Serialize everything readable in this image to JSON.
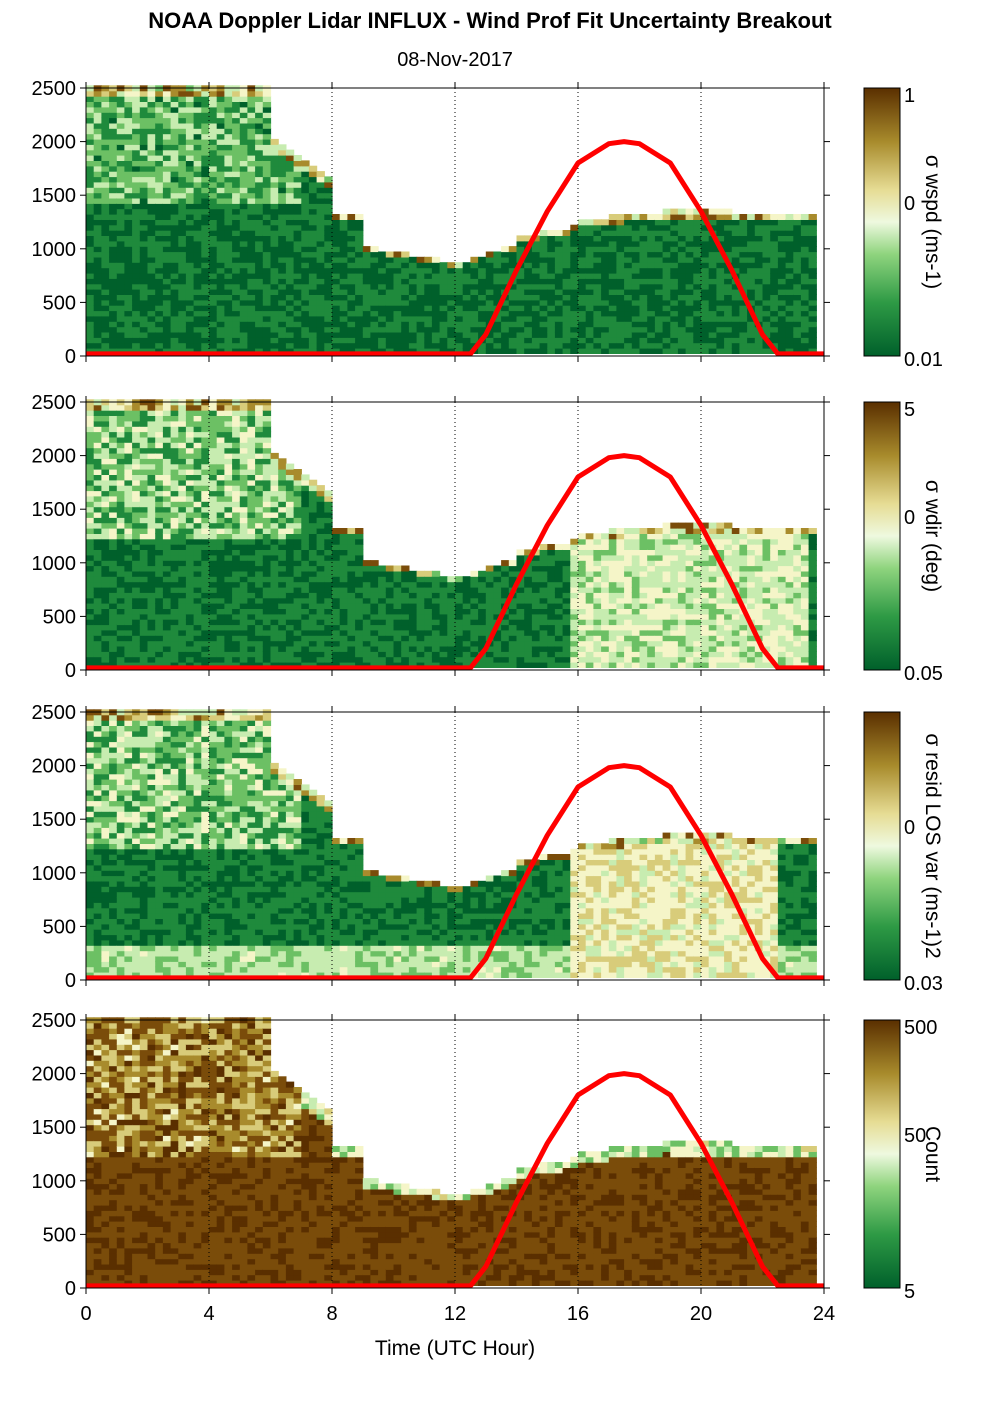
{
  "title": "NOAA Doppler Lidar INFLUX - Wind Prof Fit Uncertainty Breakout",
  "subtitle": "08-Nov-2017",
  "chart_data": {
    "type": "heatmap",
    "xlabel": "Time (UTC Hour)",
    "xlim": [
      0,
      24
    ],
    "xticks": [
      "0",
      "4",
      "8",
      "12",
      "16",
      "20",
      "24"
    ],
    "xtick_values": [
      0,
      4,
      8,
      12,
      16,
      20,
      24
    ],
    "ylim": [
      0,
      2500
    ],
    "yticks": [
      "0",
      "500",
      "1000",
      "1500",
      "2000",
      "2500"
    ],
    "ytick_values": [
      0,
      500,
      1000,
      1500,
      2000,
      2500
    ],
    "vertical_gridlines": [
      4,
      8,
      12,
      16,
      20
    ],
    "sun_curve": {
      "color": "#ff0000",
      "x": [
        0,
        12.5,
        13,
        14,
        15,
        16,
        17,
        17.5,
        18,
        19,
        20,
        21,
        22,
        22.5,
        24
      ],
      "y": [
        20,
        20,
        200,
        800,
        1350,
        1800,
        1980,
        2000,
        1980,
        1800,
        1350,
        800,
        200,
        20,
        20
      ]
    },
    "colormap": [
      "#00602b",
      "#1f8a3c",
      "#6cc064",
      "#c7ecb0",
      "#f5f5c8",
      "#d8cc7a",
      "#a88b2c",
      "#7a4c0a",
      "#5a2f00"
    ],
    "panels": [
      {
        "id": "wspd",
        "cb_label": "σ wspd (ms-1)",
        "cb_ticks": [
          "1",
          "0",
          "0.01"
        ]
      },
      {
        "id": "wdir",
        "cb_label": "σ wdir (deg)",
        "cb_ticks": [
          "5",
          "0",
          "0.05"
        ]
      },
      {
        "id": "resid",
        "cb_label": "σ resid LOS var (ms-1)2",
        "cb_ticks": [
          "0",
          "0.03"
        ]
      },
      {
        "id": "count",
        "cb_label": "Count",
        "cb_ticks": [
          "500",
          "50",
          "5"
        ]
      }
    ]
  }
}
